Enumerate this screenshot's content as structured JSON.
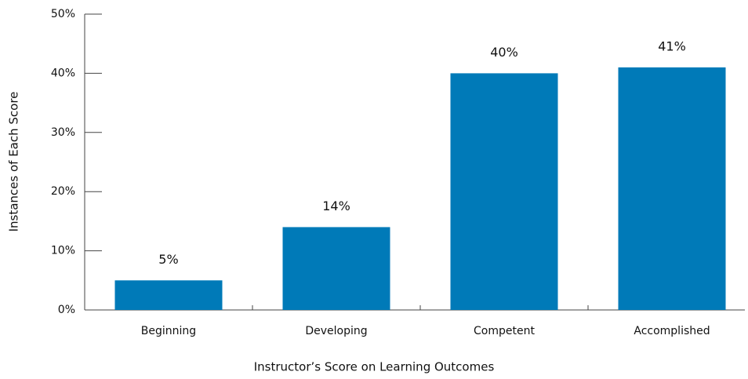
{
  "chart_data": {
    "type": "bar",
    "x_label": "Instructor’s Score on Learning Outcomes",
    "y_label": "Instances of Each Score",
    "categories": [
      "Beginning",
      "Developing",
      "Competent",
      "Accomplished"
    ],
    "values": [
      5,
      14,
      40,
      41
    ],
    "value_labels": [
      "5%",
      "14%",
      "40%",
      "41%"
    ],
    "color": "#007ab8",
    "ylim": [
      0,
      50
    ],
    "yticks": [
      {
        "value": 0,
        "label": "0%"
      },
      {
        "value": 10,
        "label": "10%"
      },
      {
        "value": 20,
        "label": "20%"
      },
      {
        "value": 30,
        "label": "30%"
      },
      {
        "value": 40,
        "label": "40%"
      },
      {
        "value": 50,
        "label": "50%"
      }
    ]
  }
}
